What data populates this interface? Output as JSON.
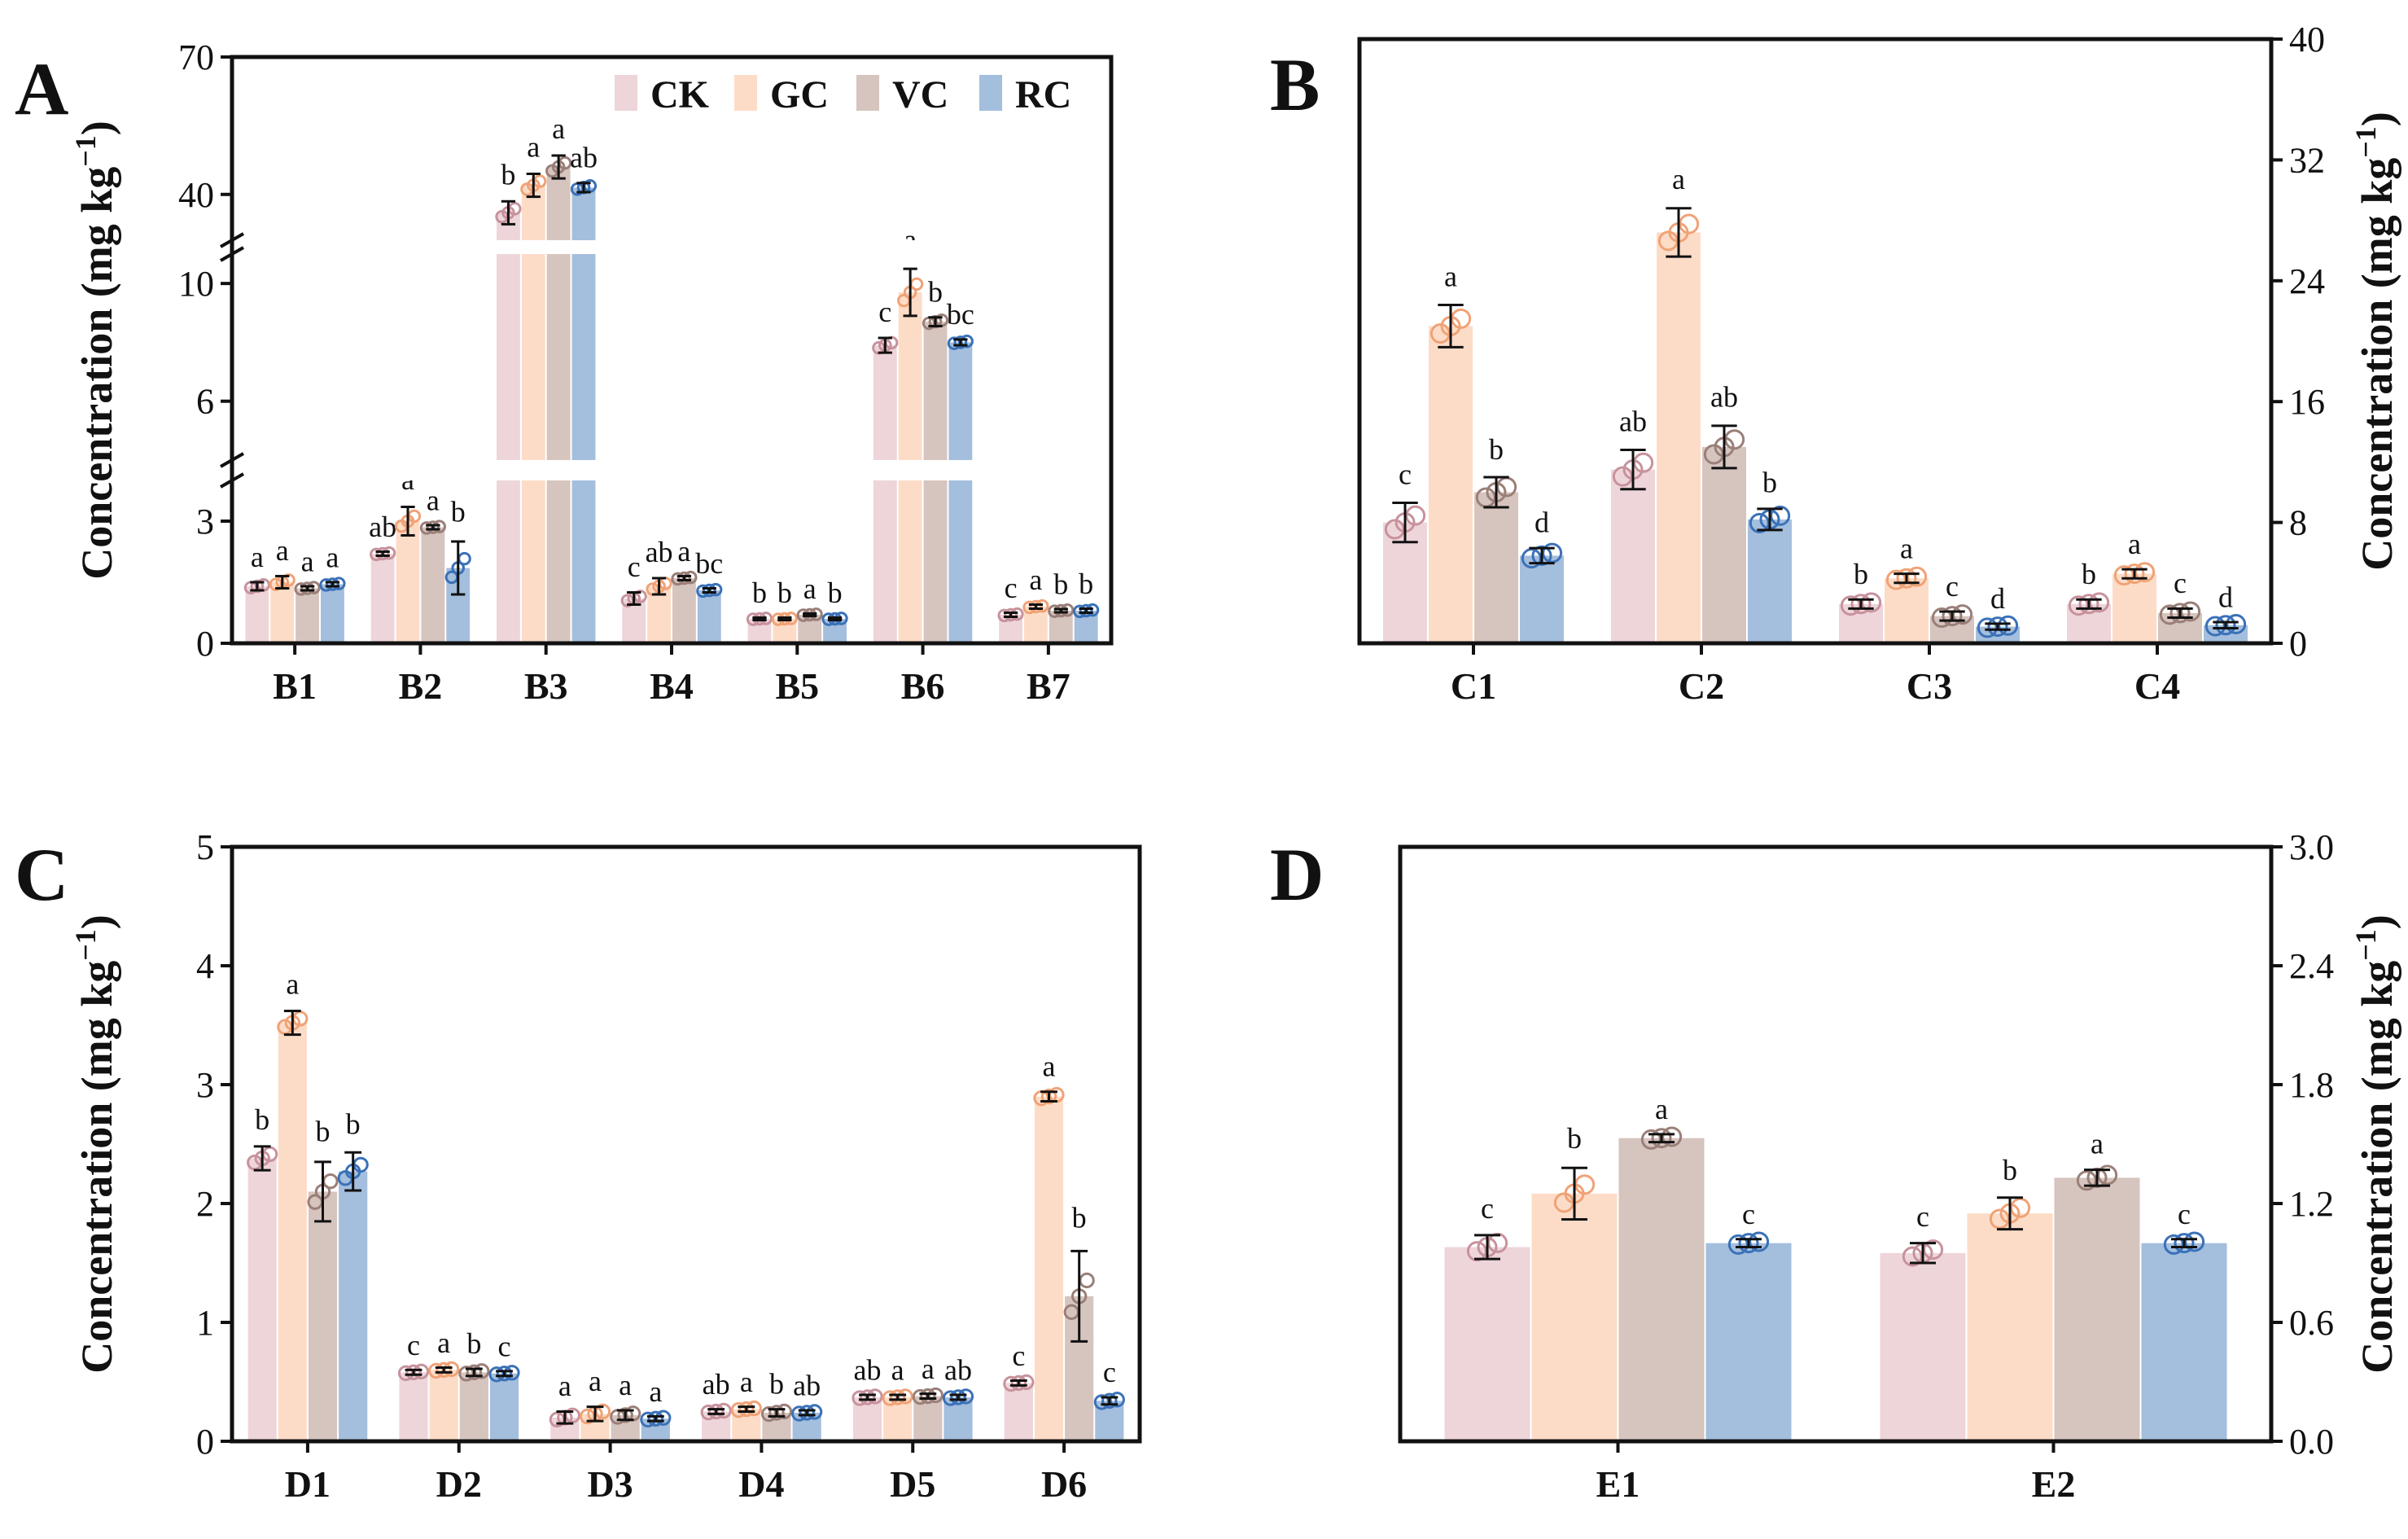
{
  "figure": {
    "background": "#ffffff"
  },
  "colors": {
    "CK": "#eed5da",
    "GC": "#fddcc7",
    "VC": "#d6c4be",
    "RC": "#a4bedd",
    "CK_edge": "#c7929c",
    "GC_edge": "#f0a276",
    "VC_edge": "#9a7f78",
    "RC_edge": "#3a71b8"
  },
  "legend": [
    "CK",
    "GC",
    "VC",
    "RC"
  ],
  "chart_data": [
    {
      "panel": "A",
      "type": "bar",
      "title": "",
      "xlabel": "",
      "ylabel_text": "Concentration (mg kg",
      "ylabel_sup": "−1",
      "ylabel_close": ")",
      "y_axis_side": "left",
      "broken_axis": true,
      "segments": [
        {
          "range": [
            0,
            4
          ],
          "ticks": [
            0,
            3
          ],
          "tick_labels": [
            "0",
            "3"
          ]
        },
        {
          "range": [
            4,
            11
          ],
          "ticks": [
            6,
            10
          ],
          "tick_labels": [
            "6",
            "10"
          ]
        },
        {
          "range": [
            30,
            70
          ],
          "ticks": [
            40,
            70
          ],
          "tick_labels": [
            "40",
            "70"
          ]
        }
      ],
      "categories": [
        "B1",
        "B2",
        "B3",
        "B4",
        "B5",
        "B6",
        "B7"
      ],
      "series": [
        {
          "name": "CK",
          "values": [
            1.4,
            2.2,
            36,
            1.1,
            0.6,
            7.9,
            0.7
          ],
          "errors": [
            0.1,
            0.05,
            2.5,
            0.15,
            0.03,
            0.25,
            0.05
          ],
          "sig": [
            "a",
            "ab",
            "b",
            "c",
            "b",
            "c",
            "c"
          ]
        },
        {
          "name": "GC",
          "values": [
            1.5,
            3.0,
            42,
            1.4,
            0.6,
            9.7,
            0.9
          ],
          "errors": [
            0.15,
            0.35,
            2.5,
            0.2,
            0.03,
            0.8,
            0.05
          ],
          "sig": [
            "a",
            "a",
            "a",
            "ab",
            "b",
            "a",
            "a"
          ]
        },
        {
          "name": "VC",
          "values": [
            1.35,
            2.85,
            46,
            1.6,
            0.7,
            8.7,
            0.8
          ],
          "errors": [
            0.05,
            0.05,
            2.5,
            0.05,
            0.03,
            0.15,
            0.04
          ],
          "sig": [
            "a",
            "a",
            "a",
            "a",
            "a",
            "b",
            "b"
          ]
        },
        {
          "name": "RC",
          "values": [
            1.45,
            1.85,
            41.5,
            1.3,
            0.6,
            8.0,
            0.8
          ],
          "errors": [
            0.05,
            0.65,
            1.0,
            0.05,
            0.03,
            0.1,
            0.05
          ],
          "sig": [
            "a",
            "b",
            "ab",
            "bc",
            "b",
            "bc",
            "b"
          ]
        }
      ]
    },
    {
      "panel": "B",
      "type": "bar",
      "title": "",
      "xlabel": "",
      "ylabel_text": "Concentration (mg kg",
      "ylabel_sup": "−1",
      "ylabel_close": ")",
      "y_axis_side": "right",
      "ylim": [
        0,
        40
      ],
      "ticks": [
        0,
        8,
        16,
        24,
        32,
        40
      ],
      "tick_labels": [
        "0",
        "8",
        "16",
        "24",
        "32",
        "40"
      ],
      "categories": [
        "C1",
        "C2",
        "C3",
        "C4"
      ],
      "series": [
        {
          "name": "CK",
          "values": [
            8.0,
            11.5,
            2.6,
            2.6
          ],
          "errors": [
            1.3,
            1.3,
            0.3,
            0.3
          ],
          "sig": [
            "c",
            "ab",
            "b",
            "b"
          ]
        },
        {
          "name": "GC",
          "values": [
            21.0,
            27.2,
            4.3,
            4.6
          ],
          "errors": [
            1.4,
            1.6,
            0.3,
            0.3
          ],
          "sig": [
            "a",
            "a",
            "a",
            "a"
          ]
        },
        {
          "name": "VC",
          "values": [
            10.0,
            13.0,
            1.8,
            2.0
          ],
          "errors": [
            1.0,
            1.4,
            0.3,
            0.3
          ],
          "sig": [
            "b",
            "ab",
            "c",
            "c"
          ]
        },
        {
          "name": "RC",
          "values": [
            5.8,
            8.2,
            1.1,
            1.2
          ],
          "errors": [
            0.5,
            0.7,
            0.2,
            0.2
          ],
          "sig": [
            "d",
            "b",
            "d",
            "d"
          ]
        }
      ]
    },
    {
      "panel": "C",
      "type": "bar",
      "title": "",
      "xlabel": "",
      "ylabel_text": "Concentration (mg kg",
      "ylabel_sup": "−1",
      "ylabel_close": ")",
      "y_axis_side": "left",
      "ylim": [
        0,
        5
      ],
      "ticks": [
        0,
        1,
        2,
        3,
        4,
        5
      ],
      "tick_labels": [
        "0",
        "1",
        "2",
        "3",
        "4",
        "5"
      ],
      "categories": [
        "D1",
        "D2",
        "D3",
        "D4",
        "D5",
        "D6"
      ],
      "series": [
        {
          "name": "CK",
          "values": [
            2.38,
            0.58,
            0.2,
            0.25,
            0.37,
            0.49
          ],
          "errors": [
            0.1,
            0.02,
            0.05,
            0.02,
            0.02,
            0.02
          ],
          "sig": [
            "b",
            "c",
            "a",
            "ab",
            "ab",
            "c"
          ]
        },
        {
          "name": "GC",
          "values": [
            3.52,
            0.6,
            0.23,
            0.27,
            0.37,
            2.9
          ],
          "errors": [
            0.1,
            0.02,
            0.06,
            0.02,
            0.02,
            0.04
          ],
          "sig": [
            "a",
            "a",
            "a",
            "a",
            "a",
            "a"
          ]
        },
        {
          "name": "VC",
          "values": [
            2.1,
            0.58,
            0.22,
            0.24,
            0.38,
            1.22
          ],
          "errors": [
            0.25,
            0.03,
            0.04,
            0.03,
            0.02,
            0.38
          ],
          "sig": [
            "b",
            "b",
            "a",
            "b",
            "a",
            "b"
          ]
        },
        {
          "name": "RC",
          "values": [
            2.27,
            0.57,
            0.19,
            0.24,
            0.37,
            0.34
          ],
          "errors": [
            0.16,
            0.02,
            0.02,
            0.02,
            0.02,
            0.03
          ],
          "sig": [
            "b",
            "c",
            "a",
            "ab",
            "ab",
            "c"
          ]
        }
      ]
    },
    {
      "panel": "D",
      "type": "bar",
      "title": "",
      "xlabel": "",
      "ylabel_text": "Concentration (mg kg",
      "ylabel_sup": "−1",
      "ylabel_close": ")",
      "y_axis_side": "right",
      "ylim": [
        0,
        3.0
      ],
      "ticks": [
        0,
        0.6,
        1.2,
        1.8,
        2.4,
        3.0
      ],
      "tick_labels": [
        "0.0",
        "0.6",
        "1.2",
        "1.8",
        "2.4",
        "3.0"
      ],
      "categories": [
        "E1",
        "E2"
      ],
      "series": [
        {
          "name": "CK",
          "values": [
            0.98,
            0.95
          ],
          "errors": [
            0.06,
            0.05
          ],
          "sig": [
            "c",
            "c"
          ]
        },
        {
          "name": "GC",
          "values": [
            1.25,
            1.15
          ],
          "errors": [
            0.13,
            0.08
          ],
          "sig": [
            "b",
            "b"
          ]
        },
        {
          "name": "VC",
          "values": [
            1.53,
            1.33
          ],
          "errors": [
            0.02,
            0.04
          ],
          "sig": [
            "a",
            "a"
          ]
        },
        {
          "name": "RC",
          "values": [
            1.0,
            1.0
          ],
          "errors": [
            0.02,
            0.02
          ],
          "sig": [
            "c",
            "c"
          ]
        }
      ]
    }
  ]
}
